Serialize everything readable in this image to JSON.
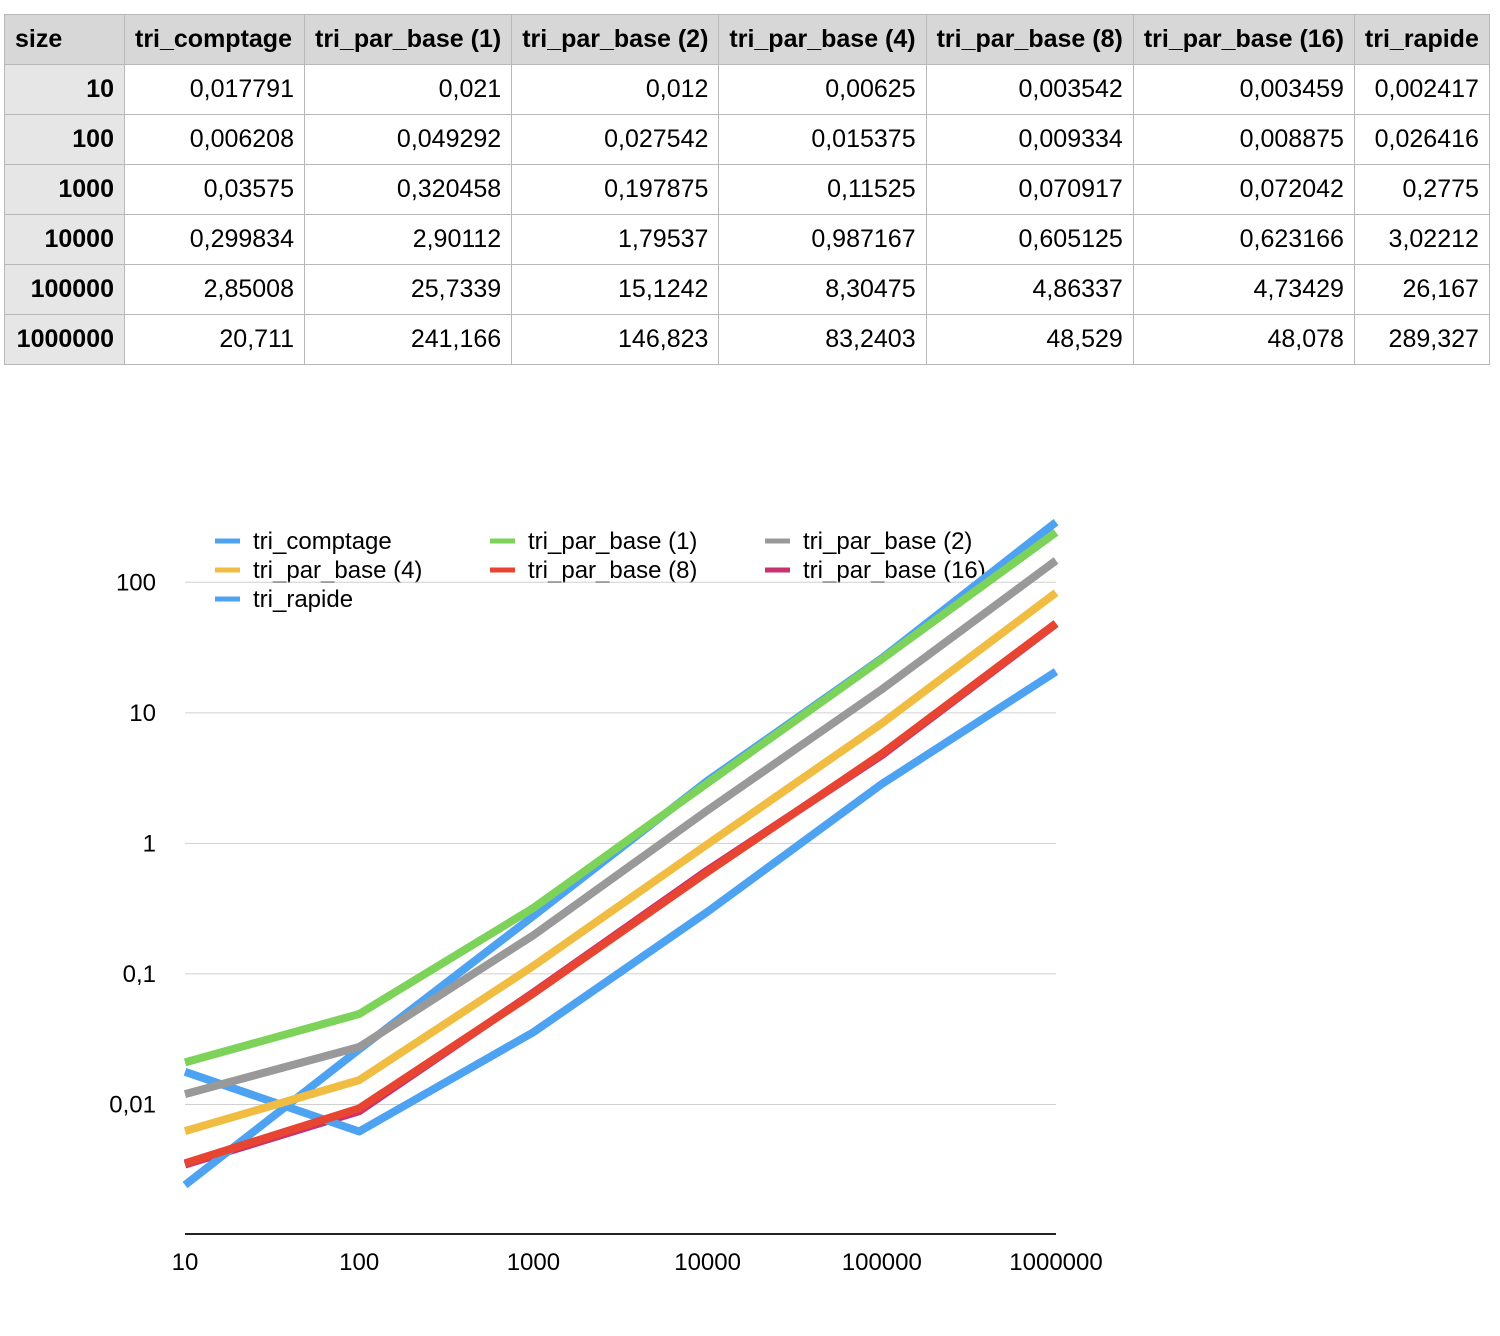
{
  "table": {
    "headers": [
      "size",
      "tri_comptage",
      "tri_par_base (1)",
      "tri_par_base (2)",
      "tri_par_base (4)",
      "tri_par_base (8)",
      "tri_par_base (16)",
      "tri_rapide"
    ],
    "rows": [
      {
        "size": "10",
        "cells": [
          "0,017791",
          "0,021",
          "0,012",
          "0,00625",
          "0,003542",
          "0,003459",
          "0,002417"
        ]
      },
      {
        "size": "100",
        "cells": [
          "0,006208",
          "0,049292",
          "0,027542",
          "0,015375",
          "0,009334",
          "0,008875",
          "0,026416"
        ]
      },
      {
        "size": "1000",
        "cells": [
          "0,03575",
          "0,320458",
          "0,197875",
          "0,11525",
          "0,070917",
          "0,072042",
          "0,2775"
        ]
      },
      {
        "size": "10000",
        "cells": [
          "0,299834",
          "2,90112",
          "1,79537",
          "0,987167",
          "0,605125",
          "0,623166",
          "3,02212"
        ]
      },
      {
        "size": "100000",
        "cells": [
          "2,85008",
          "25,7339",
          "15,1242",
          "8,30475",
          "4,86337",
          "4,73429",
          "26,167"
        ]
      },
      {
        "size": "1000000",
        "cells": [
          "20,711",
          "241,166",
          "146,823",
          "83,2403",
          "48,529",
          "48,078",
          "289,327"
        ]
      }
    ]
  },
  "chart_data": {
    "type": "line",
    "title": "",
    "xlabel": "",
    "ylabel": "",
    "y_scale": "log",
    "ylim": [
      0.001,
      300
    ],
    "grid": true,
    "legend_position": "top-left",
    "categories": [
      "10",
      "100",
      "1000",
      "10000",
      "100000",
      "1000000"
    ],
    "y_ticks": [
      {
        "value": 0.01,
        "label": "0,01"
      },
      {
        "value": 0.1,
        "label": "0,1"
      },
      {
        "value": 1,
        "label": "1"
      },
      {
        "value": 10,
        "label": "10"
      },
      {
        "value": 100,
        "label": "100"
      }
    ],
    "series": [
      {
        "name": "tri_comptage",
        "color": "#4ea2f2",
        "values": [
          0.017791,
          0.006208,
          0.03575,
          0.299834,
          2.85008,
          20.711
        ]
      },
      {
        "name": "tri_par_base (1)",
        "color": "#7dd35a",
        "values": [
          0.021,
          0.049292,
          0.320458,
          2.90112,
          25.7339,
          241.166
        ]
      },
      {
        "name": "tri_par_base (2)",
        "color": "#999999",
        "values": [
          0.012,
          0.027542,
          0.197875,
          1.79537,
          15.1242,
          146.823
        ]
      },
      {
        "name": "tri_par_base (4)",
        "color": "#f0bd42",
        "values": [
          0.00625,
          0.015375,
          0.11525,
          0.987167,
          8.30475,
          83.2403
        ]
      },
      {
        "name": "tri_par_base (8)",
        "color": "#e84432",
        "values": [
          0.003542,
          0.009334,
          0.070917,
          0.605125,
          4.86337,
          48.529
        ]
      },
      {
        "name": "tri_par_base (16)",
        "color": "#c8316e",
        "values": [
          0.003459,
          0.008875,
          0.072042,
          0.623166,
          4.73429,
          48.078
        ]
      },
      {
        "name": "tri_rapide",
        "color": "#4ea2f2",
        "values": [
          0.002417,
          0.026416,
          0.2775,
          3.02212,
          26.167,
          289.327
        ]
      }
    ],
    "draw_order": [
      "tri_par_base (16)",
      "tri_rapide",
      "tri_comptage",
      "tri_par_base (8)",
      "tri_par_base (4)",
      "tri_par_base (2)",
      "tri_par_base (1)"
    ]
  }
}
